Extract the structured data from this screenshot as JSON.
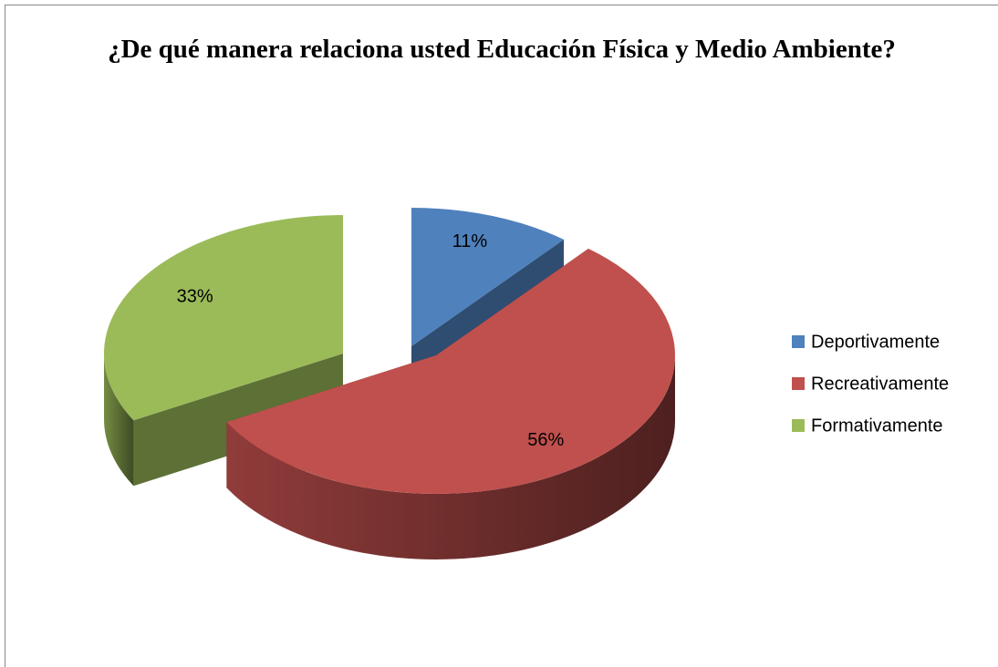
{
  "chart_data": {
    "type": "pie3d",
    "title": "¿De qué manera relaciona usted Educación Física y Medio Ambiente?",
    "categories": [
      "Deportivamente",
      "Recreativamente",
      "Formativamente"
    ],
    "values": [
      11,
      56,
      33
    ],
    "value_labels": [
      "11%",
      "56%",
      "33%"
    ],
    "colors": [
      "#4f81bd",
      "#c0504d",
      "#9bbb59"
    ],
    "legend": "right"
  }
}
